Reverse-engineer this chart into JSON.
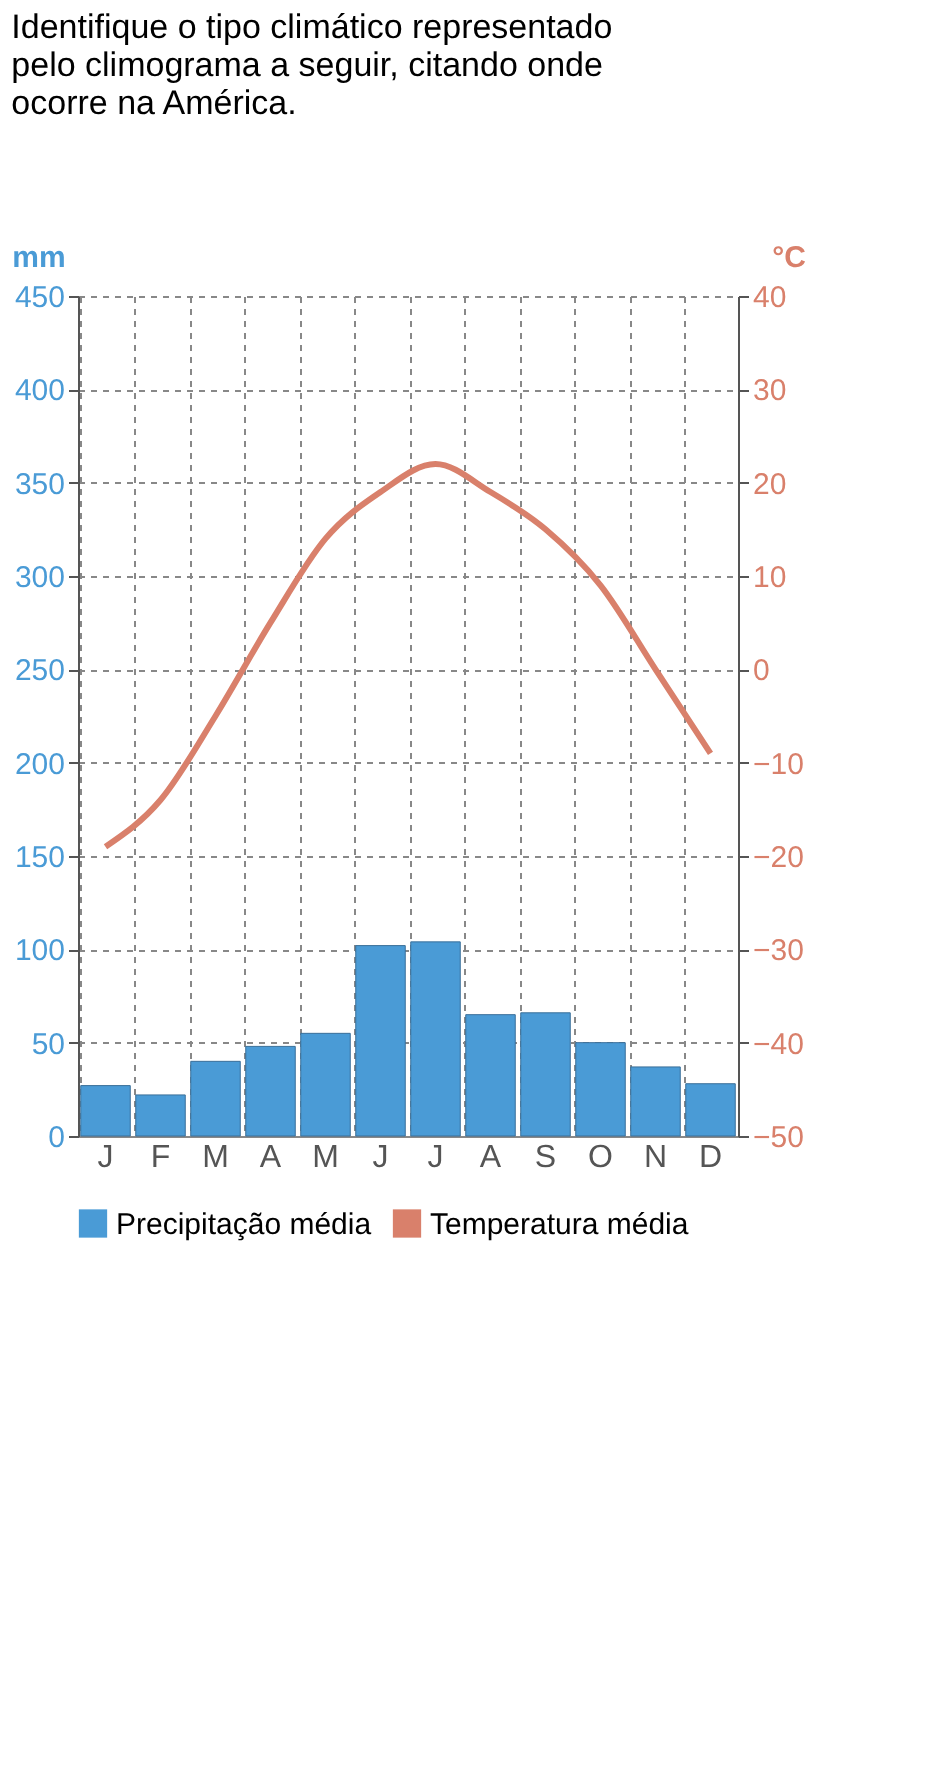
{
  "chart_data": {
    "type": "bar",
    "title": "Identifique o tipo climático representado pelo climograma a seguir, citando onde ocorre na América.",
    "categories": [
      "J",
      "F",
      "M",
      "A",
      "M",
      "J",
      "J",
      "A",
      "S",
      "O",
      "N",
      "D"
    ],
    "ylabel": "mm",
    "y2label": "°C",
    "ylim": [
      0,
      450
    ],
    "yticks": [
      0,
      50,
      100,
      150,
      200,
      250,
      300,
      350,
      400,
      450
    ],
    "y2lim": [
      -50,
      40
    ],
    "y2ticks": [
      -50,
      -40,
      -30,
      -20,
      -10,
      0,
      10,
      20,
      30,
      40
    ],
    "grid": true,
    "legend": "bottom",
    "marker": "none",
    "series": [
      {
        "name": "Precipitação média",
        "color": "#4a9bd6",
        "values": [
          27,
          22,
          40,
          48,
          55,
          102,
          104,
          65,
          66,
          50,
          37,
          28
        ]
      },
      {
        "name": "Temperatura média",
        "type": "line",
        "axis": "y2",
        "color": "#d9806b",
        "values": [
          -19,
          -14,
          -5,
          5,
          14,
          19,
          22,
          19,
          15,
          9,
          0,
          -9
        ]
      }
    ]
  }
}
